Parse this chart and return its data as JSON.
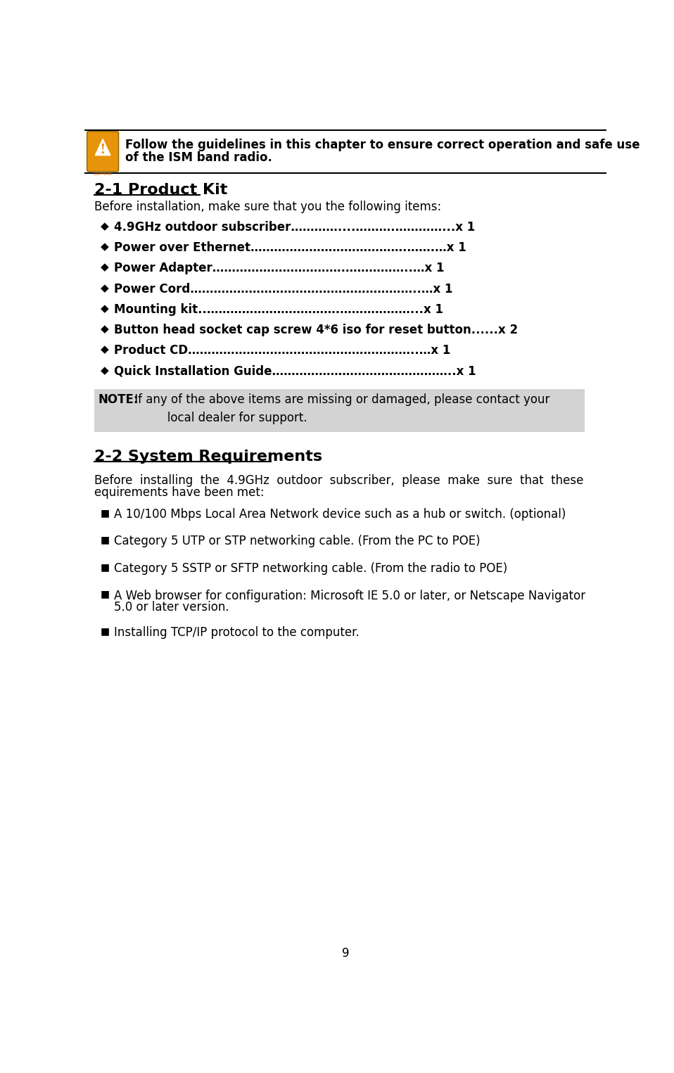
{
  "bg_color": "#ffffff",
  "page_number": "9",
  "warning_text_line1": "Follow the guidelines in this chapter to ensure correct operation and safe use",
  "warning_text_line2": "of the ISM band radio.",
  "section1_title": "2-1 Product Kit",
  "section1_intro": "Before installation, make sure that you the following items:",
  "bullet_items": [
    {
      "label": "4.9GHz outdoor subscriber",
      "dots": "…………....……….…………...x 1"
    },
    {
      "label": "Power over Ethernet",
      "dots": "………………………………….…….…x 1"
    },
    {
      "label": "Power Adapter",
      "dots": "…………………………….……………..…x 1"
    },
    {
      "label": "Power Cord",
      "dots": "…………………………………………………..…x 1"
    },
    {
      "label": "Mounting kit",
      "dots": "..…………………………….………………...x 1"
    },
    {
      "label": "Button head socket cap screw 4*6 iso for reset button",
      "dots": "......x 2"
    },
    {
      "label": "Product CD",
      "dots": "…………………………………………………..…x 1"
    },
    {
      "label": "Quick Installation Guide",
      "dots": "………………………………………..x 1"
    }
  ],
  "note_bold": "NOTE:",
  "note_bg": "#d3d3d3",
  "note_line1": " If any of the above items are missing or damaged, please contact your",
  "note_line2": "       local dealer for support.",
  "section2_title": "2-2 System Requirements",
  "icon_color": "#E8940A",
  "text_color": "#000000",
  "req_items_line1": [
    "A 10/100 Mbps Local Area Network device such as a hub or switch. (optional)",
    "Category 5 UTP or STP networking cable. (From the PC to POE)",
    "Category 5 SSTP or SFTP networking cable. (From the radio to POE)",
    "A Web browser for configuration: Microsoft IE 5.0 or later, or Netscape Navigator",
    "Installing TCP/IP protocol to the computer."
  ],
  "req_item4_line2": "5.0 or later version."
}
